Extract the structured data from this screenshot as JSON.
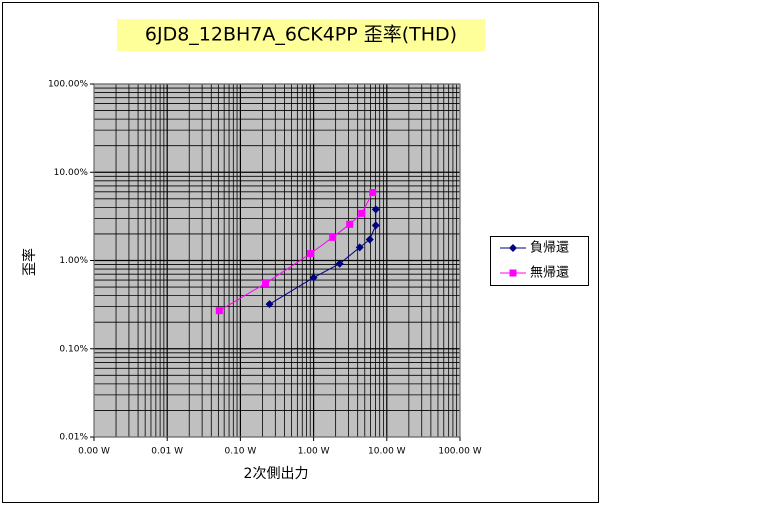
{
  "chart_data": {
    "type": "scatter",
    "title": "6JD8_12BH7A_6CK4PP 歪率(THD)",
    "x_label": "2次側出力",
    "y_label": "歪率",
    "x_log": true,
    "y_log": true,
    "grid": true,
    "minor_grid": true,
    "legend": "right",
    "xlim": [
      0.001,
      100
    ],
    "xticks": [
      {
        "value": 0.001,
        "label": "0.00 W"
      },
      {
        "value": 0.01,
        "label": "0.01 W"
      },
      {
        "value": 0.1,
        "label": "0.10 W"
      },
      {
        "value": 1,
        "label": "1.00 W"
      },
      {
        "value": 10,
        "label": "10.00 W"
      },
      {
        "value": 100,
        "label": "100.00 W"
      }
    ],
    "ylim": [
      0.01,
      100
    ],
    "yticks": [
      {
        "value": 0.01,
        "label": "0.01%"
      },
      {
        "value": 0.1,
        "label": "0.10%"
      },
      {
        "value": 1,
        "label": "1.00%"
      },
      {
        "value": 10,
        "label": "10.00%"
      },
      {
        "value": 100,
        "label": "100.00%"
      }
    ],
    "series": [
      {
        "name": "負帰還",
        "color": "#000080",
        "marker": "diamond",
        "x": [
          0.25,
          1.0,
          2.27,
          4.27,
          5.85,
          7.07,
          7.07
        ],
        "values": [
          0.32,
          0.64,
          0.92,
          1.41,
          1.73,
          2.5,
          3.8
        ]
      },
      {
        "name": "無帰還",
        "color": "#ff00ff",
        "marker": "square",
        "x": [
          0.0515,
          0.22,
          0.91,
          1.82,
          3.11,
          4.55,
          6.43
        ],
        "values": [
          0.27,
          0.55,
          1.2,
          1.83,
          2.57,
          3.42,
          5.9
        ]
      }
    ]
  }
}
